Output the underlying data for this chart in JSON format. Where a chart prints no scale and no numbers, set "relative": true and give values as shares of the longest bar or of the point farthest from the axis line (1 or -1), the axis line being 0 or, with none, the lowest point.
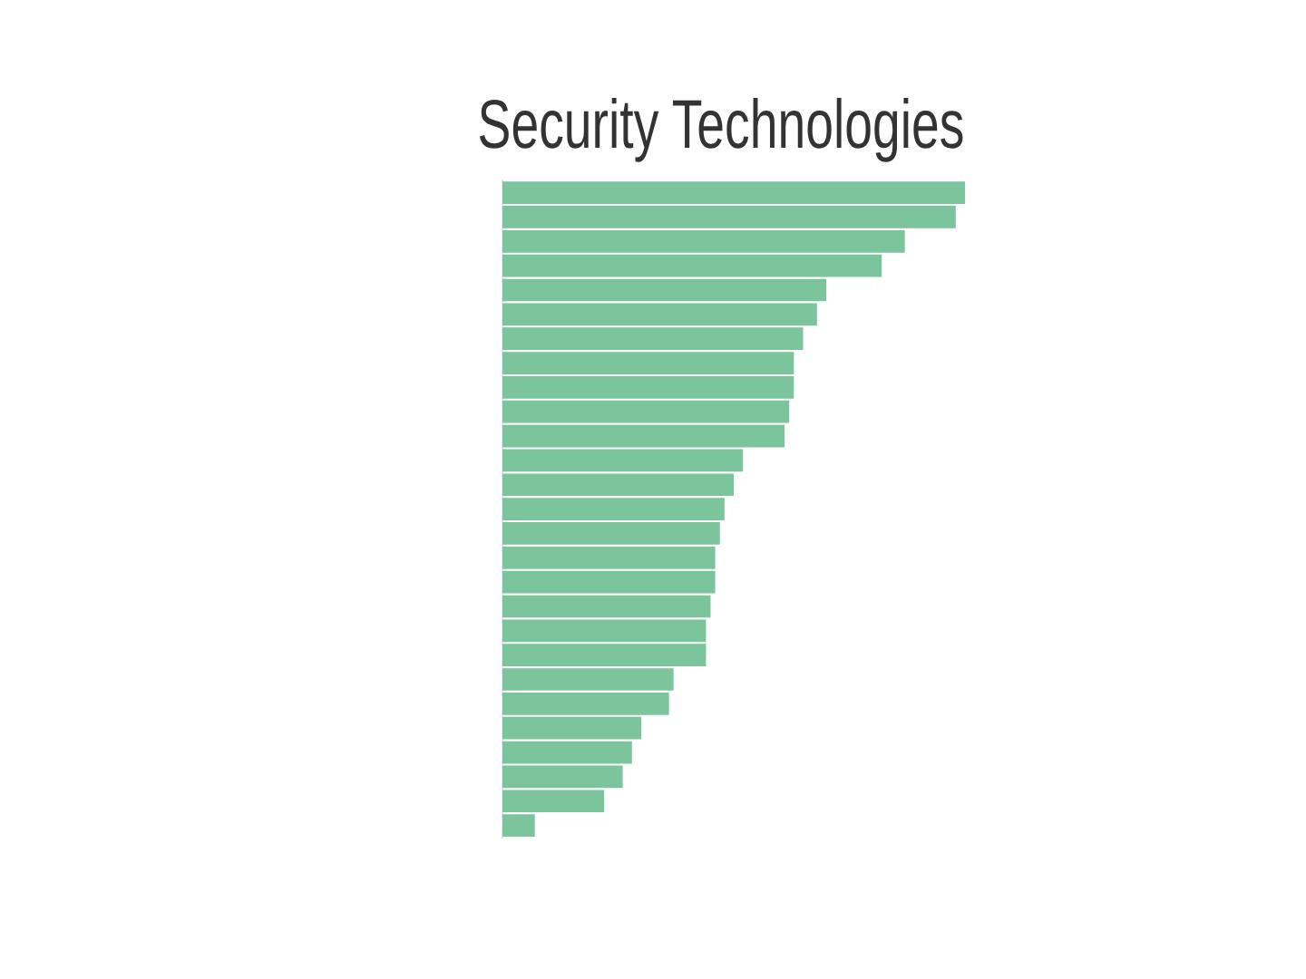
{
  "chart_data": {
    "type": "bar",
    "orientation": "horizontal",
    "relative": true,
    "title": "Security Technologies",
    "categories": [
      null,
      null,
      null,
      null,
      null,
      null,
      null,
      null,
      null,
      null,
      null,
      null,
      null,
      null,
      null,
      null,
      null,
      null,
      null,
      null,
      null,
      null,
      null,
      null,
      null,
      null,
      null
    ],
    "values": [
      1.0,
      0.98,
      0.87,
      0.82,
      0.7,
      0.68,
      0.65,
      0.63,
      0.63,
      0.62,
      0.61,
      0.52,
      0.5,
      0.48,
      0.47,
      0.46,
      0.46,
      0.45,
      0.44,
      0.44,
      0.37,
      0.36,
      0.3,
      0.28,
      0.26,
      0.22,
      0.07
    ],
    "color": "#7cc49c"
  }
}
